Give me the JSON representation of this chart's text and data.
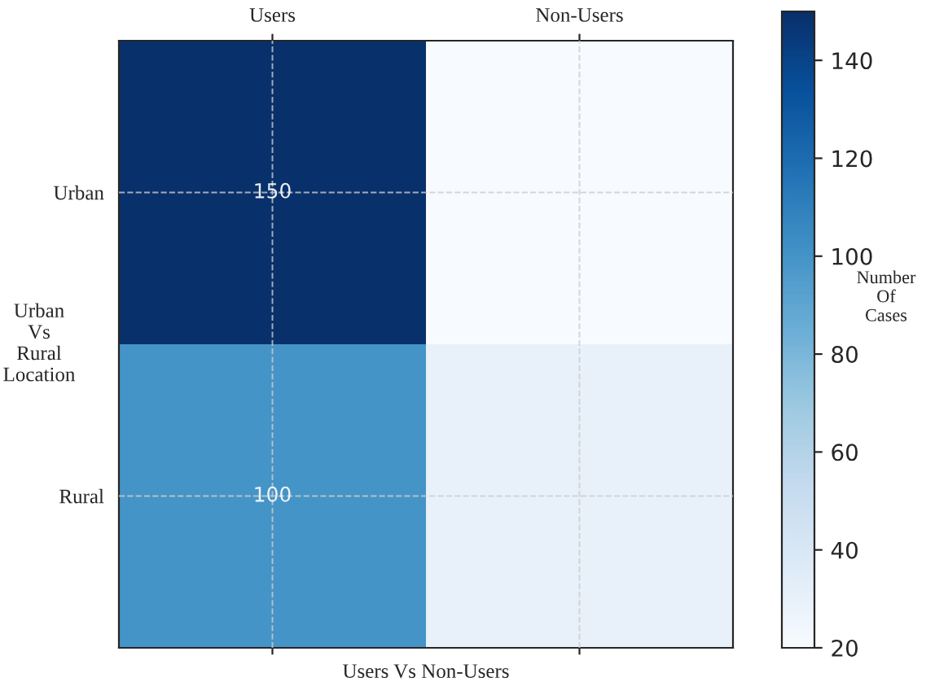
{
  "chart_data": {
    "type": "heatmap",
    "categories": [
      "Users",
      "Non-Users"
    ],
    "y_categories": [
      "Urban",
      "Rural"
    ],
    "cells": [
      [
        150,
        20
      ],
      [
        100,
        30
      ]
    ],
    "cell_labels": [
      [
        "150",
        null
      ],
      [
        "100",
        null
      ]
    ],
    "xlabel": "Users Vs Non-Users",
    "ylabel": "Urban\nVs\nRural\nLocation",
    "clabel": "Number\nOf\nCases",
    "clim": [
      20,
      150
    ],
    "cticks": [
      20,
      40,
      60,
      80,
      100,
      120,
      140
    ],
    "grid": true
  }
}
